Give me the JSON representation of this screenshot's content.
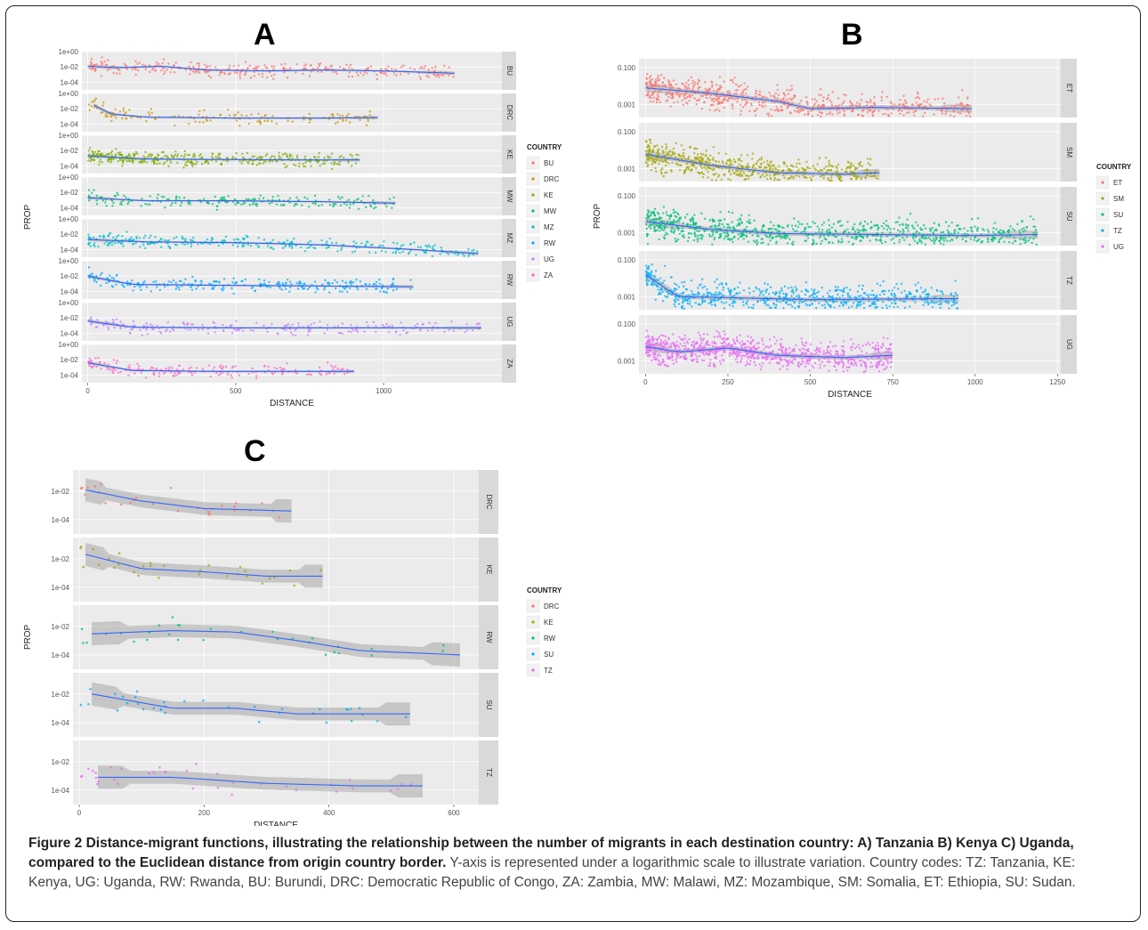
{
  "caption": {
    "label": "Figure 2",
    "bold_part": " Distance-migrant functions, illustrating the relationship between the number of migrants in each destination country: A) Tanzania B) Kenya C) Uganda, compared to the Euclidean distance from origin country border.",
    "rest": " Y-axis is represented under a logarithmic scale to illustrate variation. Country codes: TZ: Tanzania, KE: Kenya, UG: Uganda, RW: Rwanda, BU: Burundi, DRC: Democratic Republic of Congo, ZA: Zambia, MW: Malawi, MZ: Mozambique, SM: Somalia, ET: Ethiopia, SU: Sudan."
  },
  "colors": {
    "panel_bg": "#ebebeb",
    "strip_bg": "#d9d9d9",
    "grid": "#ffffff",
    "smooth_line": "#3366ff",
    "ribbon": "#999999"
  },
  "chart_data": [
    {
      "panel": "A",
      "type": "scatter",
      "xlabel": "DISTANCE",
      "ylabel": "PROP",
      "xlim": [
        -20,
        1400
      ],
      "xticks": [
        0,
        500,
        1000
      ],
      "ylog": true,
      "ylim": [
        1e-05,
        1
      ],
      "yticks": [
        1,
        0.01,
        0.0001
      ],
      "ytick_labels": [
        "1e+00",
        "1e-02",
        "1e-04"
      ],
      "legend_title": "COUNTRY",
      "legend_position": "right",
      "facets": [
        {
          "label": "BU",
          "color": "#f8766d",
          "xmax": 1240,
          "smooth": [
            [
              0,
              0.012
            ],
            [
              100,
              0.008
            ],
            [
              250,
              0.012
            ],
            [
              400,
              0.004
            ],
            [
              600,
              0.003
            ],
            [
              800,
              0.004
            ],
            [
              1000,
              0.003
            ],
            [
              1240,
              0.0015
            ]
          ],
          "points": 320
        },
        {
          "label": "DRC",
          "color": "#cd9600",
          "xmax": 980,
          "smooth": [
            [
              20,
              0.03
            ],
            [
              80,
              0.002
            ],
            [
              200,
              0.0008
            ],
            [
              500,
              0.0006
            ],
            [
              800,
              0.0006
            ],
            [
              980,
              0.0007
            ]
          ],
          "points": 150
        },
        {
          "label": "KE",
          "color": "#7cae00",
          "xmax": 920,
          "smooth": [
            [
              0,
              0.002
            ],
            [
              200,
              0.0008
            ],
            [
              400,
              0.0007
            ],
            [
              700,
              0.0006
            ],
            [
              920,
              0.0006
            ]
          ],
          "points": 380
        },
        {
          "label": "MW",
          "color": "#00be67",
          "xmax": 1040,
          "smooth": [
            [
              0,
              0.002
            ],
            [
              200,
              0.0008
            ],
            [
              500,
              0.0008
            ],
            [
              800,
              0.0006
            ],
            [
              1040,
              0.0004
            ]
          ],
          "points": 200
        },
        {
          "label": "MZ",
          "color": "#00bfc4",
          "xmax": 1320,
          "smooth": [
            [
              0,
              0.002
            ],
            [
              200,
              0.001
            ],
            [
              500,
              0.0008
            ],
            [
              800,
              0.0004
            ],
            [
              1100,
              0.0001
            ],
            [
              1320,
              3e-05
            ]
          ],
          "points": 320
        },
        {
          "label": "RW",
          "color": "#00a9ff",
          "xmax": 1100,
          "smooth": [
            [
              0,
              0.01
            ],
            [
              150,
              0.0008
            ],
            [
              500,
              0.0006
            ],
            [
              800,
              0.0005
            ],
            [
              1100,
              0.0004
            ]
          ],
          "points": 260
        },
        {
          "label": "UG",
          "color": "#c77cff",
          "xmax": 1330,
          "smooth": [
            [
              0,
              0.004
            ],
            [
              150,
              0.0006
            ],
            [
              500,
              0.0005
            ],
            [
              900,
              0.0005
            ],
            [
              1330,
              0.0005
            ]
          ],
          "points": 220
        },
        {
          "label": "ZA",
          "color": "#ff61cc",
          "xmax": 900,
          "smooth": [
            [
              0,
              0.004
            ],
            [
              150,
              0.0004
            ],
            [
              400,
              0.0003
            ],
            [
              700,
              0.0003
            ],
            [
              900,
              0.0003
            ]
          ],
          "points": 180
        }
      ]
    },
    {
      "panel": "B",
      "type": "scatter",
      "xlabel": "DISTANCE",
      "ylabel": "PROP",
      "xlim": [
        -20,
        1260
      ],
      "xticks": [
        0,
        250,
        500,
        750,
        1000,
        1250
      ],
      "ylog": true,
      "ylim": [
        0.0002,
        0.3
      ],
      "yticks": [
        0.1,
        0.001
      ],
      "ytick_labels": [
        "0.100",
        "0.001"
      ],
      "legend_title": "COUNTRY",
      "legend_position": "right",
      "facets": [
        {
          "label": "ET",
          "color": "#f8766d",
          "xmax": 990,
          "smooth": [
            [
              0,
              0.008
            ],
            [
              200,
              0.004
            ],
            [
              400,
              0.0015
            ],
            [
              500,
              0.0006
            ],
            [
              700,
              0.0007
            ],
            [
              990,
              0.0006
            ]
          ],
          "points": 700
        },
        {
          "label": "SM",
          "color": "#a3a500",
          "xmax": 710,
          "smooth": [
            [
              0,
              0.006
            ],
            [
              200,
              0.0015
            ],
            [
              400,
              0.0006
            ],
            [
              600,
              0.0005
            ],
            [
              710,
              0.0006
            ]
          ],
          "points": 650
        },
        {
          "label": "SU",
          "color": "#00bf7d",
          "xmax": 1190,
          "smooth": [
            [
              0,
              0.004
            ],
            [
              200,
              0.0015
            ],
            [
              400,
              0.0009
            ],
            [
              700,
              0.0008
            ],
            [
              1000,
              0.0007
            ],
            [
              1190,
              0.0008
            ]
          ],
          "points": 900
        },
        {
          "label": "TZ",
          "color": "#00b0f6",
          "xmax": 950,
          "smooth": [
            [
              0,
              0.015
            ],
            [
              100,
              0.001
            ],
            [
              250,
              0.0009
            ],
            [
              500,
              0.0007
            ],
            [
              950,
              0.0008
            ]
          ],
          "points": 700
        },
        {
          "label": "UG",
          "color": "#e76bf3",
          "xmax": 750,
          "smooth": [
            [
              0,
              0.006
            ],
            [
              100,
              0.003
            ],
            [
              250,
              0.005
            ],
            [
              400,
              0.002
            ],
            [
              600,
              0.0015
            ],
            [
              750,
              0.002
            ]
          ],
          "points": 900
        }
      ]
    },
    {
      "panel": "C",
      "type": "scatter",
      "xlabel": "DISTANCE",
      "ylabel": "PROP",
      "xlim": [
        -10,
        640
      ],
      "xticks": [
        0,
        200,
        400,
        600
      ],
      "ylog": true,
      "ylim": [
        1e-05,
        0.3
      ],
      "yticks": [
        0.01,
        0.0001
      ],
      "ytick_labels": [
        "1e-02",
        "1e-04"
      ],
      "legend_title": "COUNTRY",
      "legend_position": "right",
      "facets": [
        {
          "label": "DRC",
          "color": "#f8766d",
          "xmax": 340,
          "smooth": [
            [
              10,
              0.012
            ],
            [
              100,
              0.002
            ],
            [
              200,
              0.0006
            ],
            [
              340,
              0.0004
            ]
          ],
          "points": 30
        },
        {
          "label": "KE",
          "color": "#a3a500",
          "xmax": 390,
          "smooth": [
            [
              10,
              0.02
            ],
            [
              100,
              0.002
            ],
            [
              200,
              0.0012
            ],
            [
              300,
              0.0006
            ],
            [
              390,
              0.0006
            ]
          ],
          "points": 30
        },
        {
          "label": "RW",
          "color": "#00bf7d",
          "xmax": 610,
          "smooth": [
            [
              20,
              0.003
            ],
            [
              150,
              0.005
            ],
            [
              250,
              0.004
            ],
            [
              350,
              0.001
            ],
            [
              450,
              0.0002
            ],
            [
              610,
              0.0001
            ]
          ],
          "points": 30
        },
        {
          "label": "SU",
          "color": "#00b0f6",
          "xmax": 530,
          "smooth": [
            [
              20,
              0.01
            ],
            [
              150,
              0.001
            ],
            [
              250,
              0.001
            ],
            [
              350,
              0.0004
            ],
            [
              530,
              0.0004
            ]
          ],
          "points": 35
        },
        {
          "label": "TZ",
          "color": "#e76bf3",
          "xmax": 550,
          "smooth": [
            [
              30,
              0.0008
            ],
            [
              150,
              0.0008
            ],
            [
              300,
              0.0003
            ],
            [
              450,
              0.0002
            ],
            [
              550,
              0.0002
            ]
          ],
          "points": 35
        }
      ]
    }
  ]
}
